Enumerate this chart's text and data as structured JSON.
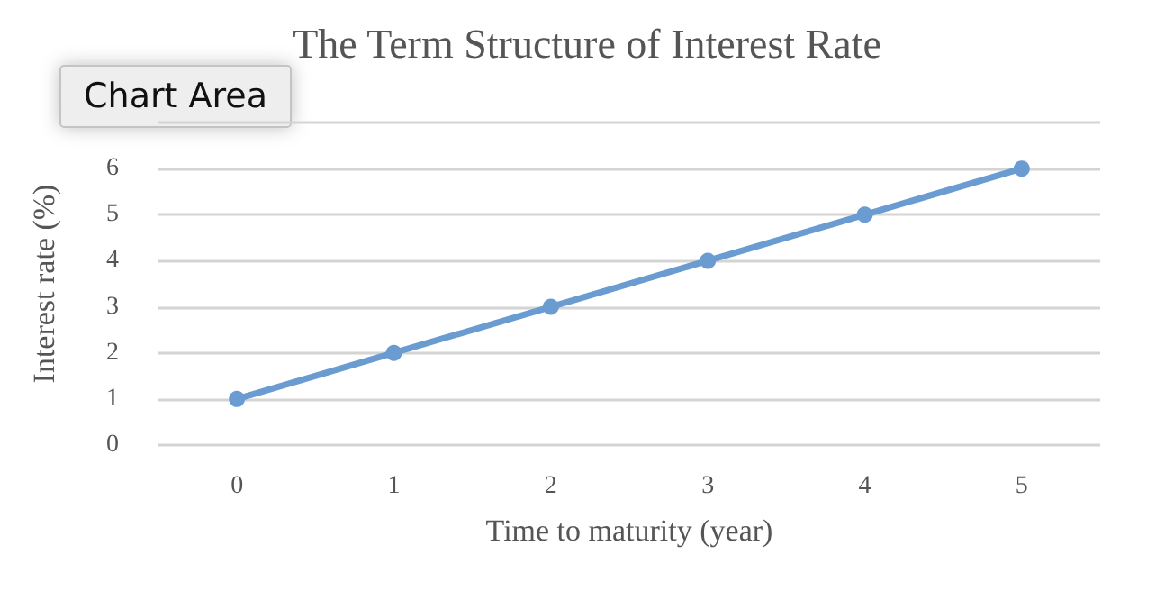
{
  "chart_data": {
    "type": "line",
    "title": "The Term Structure of Interest Rate",
    "xlabel": "Time to maturity (year)",
    "ylabel": "Interest rate (%)",
    "categories": [
      "0",
      "1",
      "2",
      "3",
      "4",
      "5"
    ],
    "series": [
      {
        "color": "#6a9bd1",
        "values": [
          1,
          2,
          3,
          4,
          5,
          6
        ]
      }
    ],
    "ylim": [
      0,
      7
    ],
    "yticks": [
      0,
      1,
      2,
      3,
      4,
      5,
      6,
      {
        "value": 7,
        "label": null
      }
    ],
    "grid": "y",
    "marker": "circle",
    "line_style": "solid",
    "annotations": [
      "Chart Area"
    ]
  }
}
